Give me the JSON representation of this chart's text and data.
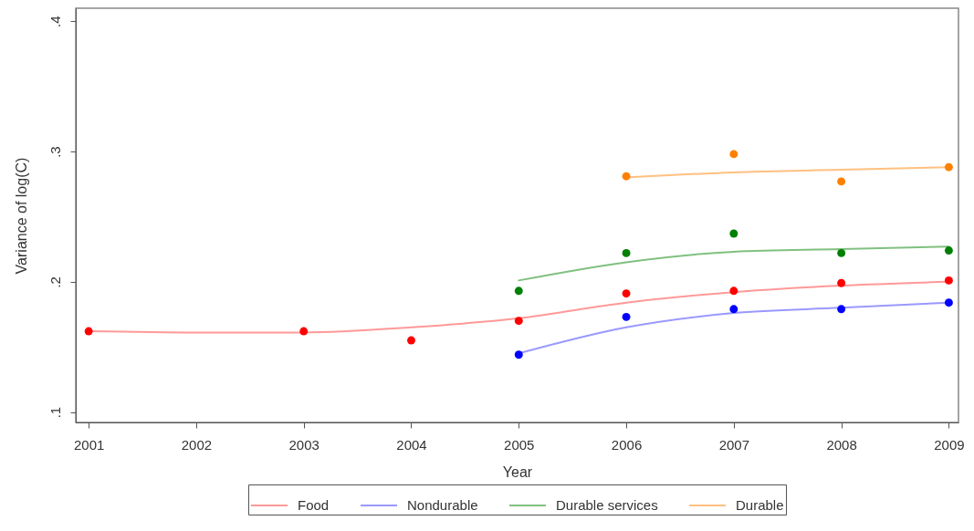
{
  "chart_data": {
    "type": "scatter",
    "xlabel": "Year",
    "ylabel": "Variance of log(C)",
    "xlim": [
      2000.88,
      2009.09
    ],
    "xticks": [
      2001,
      2002,
      2003,
      2004,
      2005,
      2006,
      2007,
      2008,
      2009
    ],
    "ylim": [
      0.092,
      0.41
    ],
    "yticks": [
      {
        "value": 0.1,
        "label": ".1"
      },
      {
        "value": 0.2,
        "label": ".2"
      },
      {
        "value": 0.3,
        "label": ".3"
      },
      {
        "value": 0.4,
        "label": ".4"
      }
    ],
    "grid": false,
    "legend": "bottom",
    "marker": "circle",
    "line_style": "solid",
    "series": [
      {
        "type": "line",
        "name": "Food",
        "color": "#ff9999",
        "marker": "none",
        "x": [
          2001,
          2002,
          2003,
          2004,
          2005,
          2006,
          2007,
          2008,
          2009
        ],
        "values": [
          0.162,
          0.161,
          0.161,
          0.165,
          0.172,
          0.184,
          0.192,
          0.197,
          0.2
        ]
      },
      {
        "type": "line",
        "name": "Nondurable",
        "color": "#9999ff",
        "marker": "none",
        "x": [
          2005,
          2006,
          2007,
          2008,
          2009
        ],
        "values": [
          0.145,
          0.165,
          0.176,
          0.18,
          0.184
        ]
      },
      {
        "type": "line",
        "name": "Durable services",
        "color": "#80c080",
        "marker": "none",
        "x": [
          2005,
          2006,
          2007,
          2008,
          2009
        ],
        "values": [
          0.201,
          0.215,
          0.223,
          0.225,
          0.227
        ]
      },
      {
        "type": "line",
        "name": "Durable",
        "color": "#ffc080",
        "marker": "none",
        "x": [
          2006,
          2007,
          2008,
          2009
        ],
        "values": [
          0.28,
          0.284,
          0.286,
          0.288
        ]
      },
      {
        "type": "scatter",
        "color": "#ff0000",
        "x": [
          2001,
          2003,
          2004,
          2005,
          2006,
          2007,
          2008,
          2009
        ],
        "values": [
          0.162,
          0.162,
          0.155,
          0.17,
          0.191,
          0.193,
          0.199,
          0.201
        ]
      },
      {
        "type": "scatter",
        "color": "#0000ff",
        "x": [
          2005,
          2006,
          2007,
          2008,
          2009
        ],
        "values": [
          0.144,
          0.173,
          0.179,
          0.179,
          0.184
        ]
      },
      {
        "type": "scatter",
        "color": "#008000",
        "x": [
          2005,
          2006,
          2007,
          2008,
          2009
        ],
        "values": [
          0.193,
          0.222,
          0.237,
          0.222,
          0.224
        ]
      },
      {
        "type": "scatter",
        "color": "#ff8000",
        "x": [
          2006,
          2007,
          2008,
          2009
        ],
        "values": [
          0.281,
          0.298,
          0.277,
          0.288
        ]
      }
    ]
  }
}
